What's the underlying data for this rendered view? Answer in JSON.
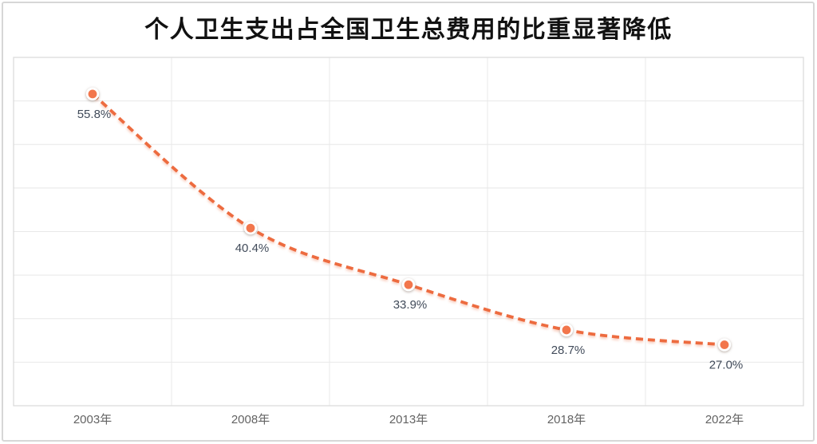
{
  "chart_data": {
    "type": "line",
    "title": "个人卫生支出占全国卫生总费用的比重显著降低",
    "categories": [
      "2003年",
      "2008年",
      "2013年",
      "2018年",
      "2022年"
    ],
    "series": [
      {
        "values": [
          55.8,
          40.4,
          33.9,
          28.7,
          27.0
        ],
        "point_labels": [
          "55.8%",
          "40.4%",
          "33.9%",
          "28.7%",
          "27.0%"
        ]
      }
    ],
    "ylim": [
      20,
      60
    ],
    "y_gridline_step": 5,
    "y_axis_labels_visible": false,
    "grid": "on",
    "legend": "none",
    "line_style": "dashed-smooth",
    "marker": "circle-white-ring",
    "colors": {
      "line": "#ED6B3F",
      "marker_fill": "#F2764C",
      "marker_ring": "#FFFFFF",
      "data_label": "#414B5A",
      "axis_label": "#636363",
      "gridline": "#E8E8E8",
      "plot_border": "#D9D9D9",
      "title": "#111111",
      "background": "#FFFFFF",
      "outer_border": "#D7D7D7"
    }
  }
}
